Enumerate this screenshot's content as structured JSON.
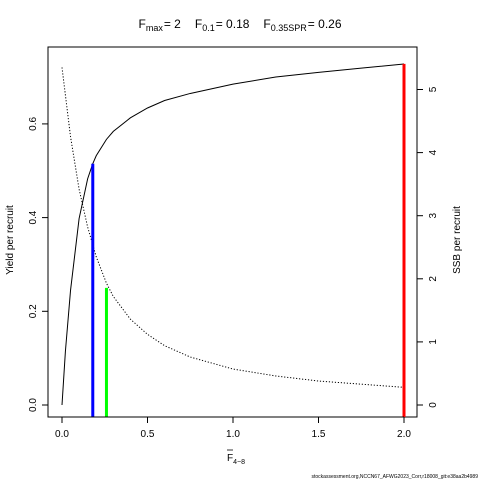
{
  "chart_data": {
    "type": "line",
    "title": {
      "fmax_label": "F",
      "fmax_sub": "max",
      "fmax_value": "= 2",
      "f01_label": "F",
      "f01_sub": "0.1",
      "f01_value": "= 0.18",
      "f035_label": "F",
      "f035_sub": "0.35SPR",
      "f035_value": "= 0.26"
    },
    "xlabel": {
      "main": "F",
      "sub": "4−8"
    },
    "ylabel_left": "Yield per recruit",
    "ylabel_right": "SSB per recruit",
    "xlim": [
      0,
      2
    ],
    "ylim_left": [
      0,
      0.73
    ],
    "ylim_right": [
      0,
      5.42
    ],
    "x_ticks": [
      {
        "value": 0.0,
        "label": "0.0"
      },
      {
        "value": 0.5,
        "label": "0.5"
      },
      {
        "value": 1.0,
        "label": "1.0"
      },
      {
        "value": 1.5,
        "label": "1.5"
      },
      {
        "value": 2.0,
        "label": "2.0"
      }
    ],
    "y_ticks_left": [
      {
        "value": 0.0,
        "label": "0.0"
      },
      {
        "value": 0.2,
        "label": "0.2"
      },
      {
        "value": 0.4,
        "label": "0.4"
      },
      {
        "value": 0.6,
        "label": "0.6"
      }
    ],
    "y_ticks_right": [
      {
        "value": 0,
        "label": "0"
      },
      {
        "value": 1,
        "label": "1"
      },
      {
        "value": 2,
        "label": "2"
      },
      {
        "value": 3,
        "label": "3"
      },
      {
        "value": 4,
        "label": "4"
      },
      {
        "value": 5,
        "label": "5"
      }
    ],
    "series": [
      {
        "style": "solid",
        "axis": "left",
        "color": "#000000",
        "x": [
          0,
          0.02,
          0.05,
          0.1,
          0.15,
          0.18,
          0.2,
          0.26,
          0.3,
          0.4,
          0.5,
          0.6,
          0.75,
          1.0,
          1.25,
          1.5,
          1.75,
          2.0
        ],
        "y": [
          0,
          0.115,
          0.245,
          0.398,
          0.483,
          0.515,
          0.532,
          0.567,
          0.584,
          0.613,
          0.634,
          0.65,
          0.665,
          0.685,
          0.7,
          0.71,
          0.719,
          0.728
        ]
      },
      {
        "style": "dotted",
        "axis": "right",
        "color": "#000000",
        "x": [
          0,
          0.05,
          0.1,
          0.15,
          0.2,
          0.26,
          0.3,
          0.4,
          0.5,
          0.6,
          0.75,
          1.0,
          1.25,
          1.5,
          1.75,
          2.0
        ],
        "y": [
          5.35,
          4.25,
          3.42,
          2.82,
          2.35,
          1.93,
          1.72,
          1.36,
          1.12,
          0.94,
          0.76,
          0.57,
          0.46,
          0.38,
          0.33,
          0.28
        ]
      }
    ],
    "reference_lines": [
      {
        "name": "F0.1",
        "x": 0.18,
        "y": 0.515,
        "color": "#0000ff"
      },
      {
        "name": "F0.35SPR",
        "x": 0.26,
        "y": 0.25,
        "color": "#00ff00"
      },
      {
        "name": "Fmax",
        "x": 2.0,
        "y": 0.728,
        "color": "#ff0000"
      }
    ],
    "grid": false
  },
  "footer": "stockassessment.org,NCCN67_AFWG2023_Corr,r18008_git:e38aa2b4989"
}
